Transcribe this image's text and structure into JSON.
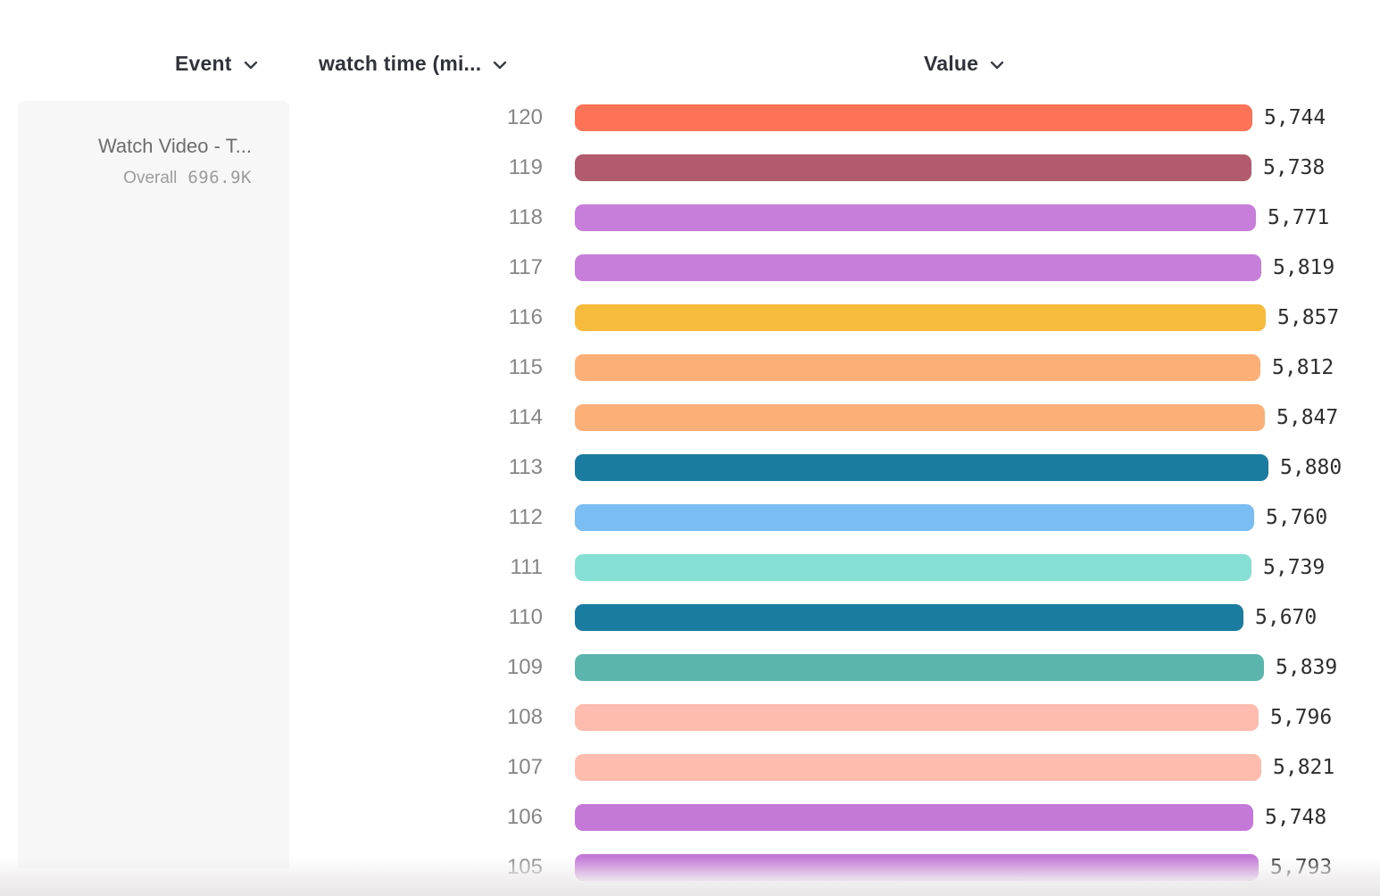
{
  "header": {
    "columns": [
      {
        "id": "event",
        "label": "Event"
      },
      {
        "id": "breakdown",
        "label": "watch time (mi..."
      },
      {
        "id": "value",
        "label": "Value"
      }
    ]
  },
  "legend": {
    "event_title": "Watch Video - T...",
    "overall_label": "Overall",
    "overall_value": "696.9K"
  },
  "chart_data": {
    "type": "bar",
    "orientation": "horizontal",
    "title": "",
    "series_name": "Watch Video - T... (Overall 696.9K)",
    "breakdown_property": "watch time (mi...",
    "value_axis_label": "Value",
    "xlim": [
      0,
      5880
    ],
    "grid": false,
    "categories": [
      "120",
      "119",
      "118",
      "117",
      "116",
      "115",
      "114",
      "113",
      "112",
      "111",
      "110",
      "109",
      "108",
      "107",
      "106",
      "105"
    ],
    "values": [
      5744,
      5738,
      5771,
      5819,
      5857,
      5812,
      5847,
      5880,
      5760,
      5739,
      5670,
      5839,
      5796,
      5821,
      5748,
      5793
    ],
    "value_labels": [
      "5,744",
      "5,738",
      "5,771",
      "5,819",
      "5,857",
      "5,812",
      "5,847",
      "5,880",
      "5,760",
      "5,739",
      "5,670",
      "5,839",
      "5,796",
      "5,821",
      "5,748",
      "5,793"
    ],
    "colors": [
      "#FD7357",
      "#B25A6E",
      "#C77EDA",
      "#C77EDA",
      "#F6BB3C",
      "#FCB077",
      "#FCB077",
      "#1A7CA1",
      "#79BDF2",
      "#85DFD4",
      "#1A7CA1",
      "#5BB5AD",
      "#FDBCAE",
      "#FDBCAE",
      "#C478D8",
      "#C478D8"
    ]
  },
  "colors": {
    "header_text": "#30343a",
    "row_label": "#868686",
    "value_text": "#2e2e2e",
    "panel_bg": "#f7f7f7"
  }
}
